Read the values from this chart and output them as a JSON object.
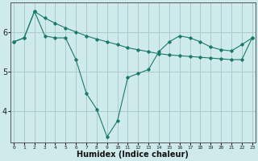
{
  "xlabel": "Humidex (Indice chaleur)",
  "bg_color": "#ceeaea",
  "line_color": "#1a7a6a",
  "grid_color": "#aacccc",
  "x_ticks": [
    0,
    1,
    2,
    3,
    4,
    5,
    6,
    7,
    8,
    9,
    10,
    11,
    12,
    13,
    14,
    15,
    16,
    17,
    18,
    19,
    20,
    21,
    22,
    23
  ],
  "y_ticks": [
    4,
    5,
    6
  ],
  "ylim": [
    3.2,
    6.75
  ],
  "xlim": [
    -0.3,
    23.3
  ],
  "line1_y": [
    5.75,
    5.85,
    6.52,
    6.35,
    6.22,
    6.1,
    6.0,
    5.9,
    5.82,
    5.75,
    5.68,
    5.6,
    5.55,
    5.5,
    5.45,
    5.42,
    5.4,
    5.38,
    5.36,
    5.34,
    5.32,
    5.3,
    5.3,
    5.85
  ],
  "line2_y": [
    5.75,
    5.85,
    6.52,
    5.9,
    5.85,
    5.85,
    5.3,
    4.45,
    4.05,
    3.35,
    3.75,
    4.85,
    4.95,
    5.05,
    5.5,
    5.75,
    5.9,
    5.85,
    5.75,
    5.62,
    5.55,
    5.52,
    5.68,
    5.85
  ]
}
